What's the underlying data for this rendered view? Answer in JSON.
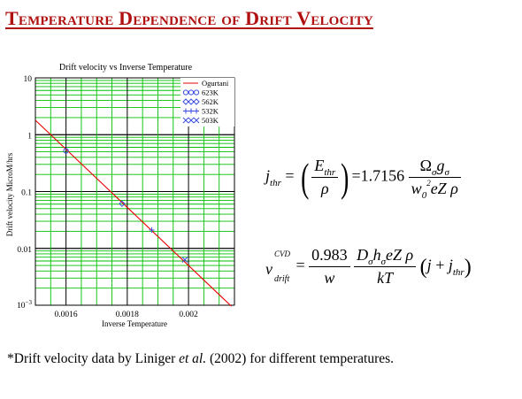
{
  "slide": {
    "title": "Temperature Dependence of Drift Velocity"
  },
  "chart_data": {
    "type": "scatter",
    "title": "Drift velocity vs Inverse Temperature",
    "xlabel": "Inverse Temperature",
    "ylabel": "Drift velocity  MicroM/hrs",
    "xlim": [
      0.0015,
      0.00215
    ],
    "ylim": [
      0.001,
      10
    ],
    "yscale": "log",
    "grid": true,
    "legend_position": "top-right",
    "x_ticks": [
      0.0016,
      0.0018,
      0.002
    ],
    "x_tick_labels": [
      "0.0016",
      "0.0018",
      "0.002"
    ],
    "y_ticks": [
      10,
      1,
      0.1,
      0.01
    ],
    "y_tick_labels": [
      "10",
      "1",
      "0.1",
      "0.01"
    ],
    "y_bottom_label_base": "10",
    "y_bottom_label_exp": "−3",
    "line": {
      "name": "Ogurtani",
      "color": "#ee0000",
      "x": [
        0.0015,
        0.00214
      ],
      "y": [
        1.8,
        0.00096
      ]
    },
    "series": [
      {
        "name": "623K",
        "marker": "circle",
        "color": "#3a4de0",
        "x": [
          0.0016
        ],
        "y": [
          0.52
        ]
      },
      {
        "name": "562K",
        "marker": "diamond",
        "color": "#3a4de0",
        "x": [
          0.001783
        ],
        "y": [
          0.061
        ]
      },
      {
        "name": "532K",
        "marker": "plus",
        "color": "#3a4de0",
        "x": [
          0.00188
        ],
        "y": [
          0.021
        ]
      },
      {
        "name": "503K",
        "marker": "cross",
        "color": "#3a4de0",
        "x": [
          0.001988
        ],
        "y": [
          0.0063
        ]
      }
    ]
  },
  "equations": {
    "eq1": {
      "lhs_var": "j",
      "lhs_sub": "thr",
      "eq": "=",
      "num_var": "E",
      "num_sub": "thr",
      "den": "ρ",
      "coef": "1.7156",
      "rnum_omega": "Ω",
      "rnum_sub1": "σ",
      "rnum_g": "g",
      "rnum_sub2": "σ",
      "rden_w": "w",
      "rden_wsub": "0",
      "rden_wsup": "2",
      "rden_rest": "eZ ρ"
    },
    "eq2": {
      "lhs_var": "v",
      "lhs_sup": "CVD",
      "lhs_sub": "drift",
      "eq": "=",
      "f1_num": "0.983",
      "f1_den": "w",
      "f2_D": "D",
      "f2_sub1": "σ",
      "f2_h": "h",
      "f2_sub2": "σ",
      "f2_rest": "eZ ρ",
      "f2_den": "kT",
      "paren_j": "j",
      "paren_plus": "+",
      "paren_j2": "j",
      "paren_sub": "thr"
    }
  },
  "footnote": {
    "pre": "*Drift velocity data by Liniger ",
    "etal": "et al.",
    "post": " (2002) for different temperatures."
  }
}
